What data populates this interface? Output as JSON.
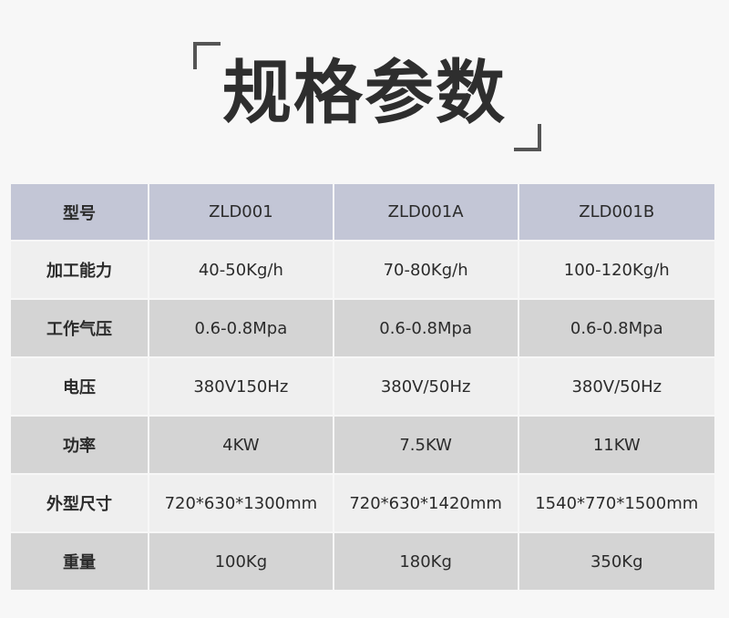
{
  "title": "规格参数",
  "colors": {
    "header_bg": "#c3c6d6",
    "row_light": "#efefef",
    "row_dark": "#d4d4d4",
    "page_bg": "#f7f7f7"
  },
  "table": {
    "header": {
      "label": "型号",
      "models": [
        "ZLD001",
        "ZLD001A",
        "ZLD001B"
      ]
    },
    "rows": [
      {
        "label": "加工能力",
        "values": [
          "40-50Kg/h",
          "70-80Kg/h",
          "100-120Kg/h"
        ]
      },
      {
        "label": "工作气压",
        "values": [
          "0.6-0.8Mpa",
          "0.6-0.8Mpa",
          "0.6-0.8Mpa"
        ]
      },
      {
        "label": "电压",
        "values": [
          "380V150Hz",
          "380V/50Hz",
          "380V/50Hz"
        ]
      },
      {
        "label": "功率",
        "values": [
          "4KW",
          "7.5KW",
          "11KW"
        ]
      },
      {
        "label": "外型尺寸",
        "values": [
          "720*630*1300mm",
          "720*630*1420mm",
          "1540*770*1500mm"
        ]
      },
      {
        "label": "重量",
        "values": [
          "100Kg",
          "180Kg",
          "350Kg"
        ]
      }
    ]
  }
}
